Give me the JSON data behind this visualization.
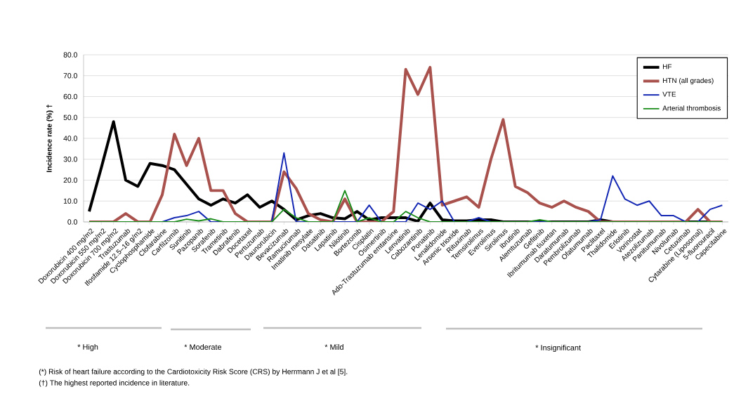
{
  "chart_data": {
    "type": "line",
    "ylabel": "Incidence rate (%) †",
    "categories": [
      "Doxorubicin 400 mg/m2",
      "Doxorubicin 550 mg/m2",
      "Doxorubicin 700 mg/m2",
      "Trastuzumab",
      "Ifosfamide 12.5–16 g/m2",
      "Cyclophosphamide",
      "Clofarabine",
      "Carfilzomib",
      "Sunitinib",
      "Pazopanib",
      "Sorafenib",
      "Trametinib",
      "Dabrafenib",
      "Docetaxel",
      "Pertuzumab",
      "Daunorubicin",
      "Bevacizumab",
      "Ramucirumab",
      "Imatinib mesylate",
      "Dasatinib",
      "Lapatinib",
      "Nilotinib",
      "Bortezomib",
      "Cisplatin",
      "Osimertinib",
      "Ado-Trastuzumab emtansine",
      "Lenvatinib",
      "Cabozantinib",
      "Ponatinib",
      "Lenalidomide",
      "Arsenic trioxide",
      "Rituximab",
      "Temsirolimus",
      "Everolimus",
      "Sirolimus",
      "Ibrutinib",
      "Alemtuzumab",
      "Gefitinib",
      "Ibritumumab tiuxetan",
      "Daratumumab",
      "Pembrolizumab",
      "Ofatumumab",
      "Paclitaxel",
      "Thalidomide",
      "Erlotinib",
      "Vorinostat",
      "Atezolizumab",
      "Panitumumab",
      "Nivolumab",
      "Cetuximab",
      "Cytarabine (Liposomal)",
      "5-fluorouracil",
      "Capecitabine"
    ],
    "series": [
      {
        "name": "HF",
        "color": "#000000",
        "values": [
          5,
          26,
          48,
          20,
          17,
          28,
          27,
          25,
          18,
          11,
          8,
          11,
          9,
          13,
          7,
          10,
          6,
          1,
          3,
          4,
          2,
          1.5,
          5,
          1,
          2,
          2,
          2,
          0.3,
          9,
          1,
          0.5,
          0.5,
          1,
          1,
          0,
          0,
          0,
          0,
          0,
          0,
          0,
          0,
          1,
          0,
          0,
          0,
          0,
          0,
          0,
          0,
          0,
          0,
          0
        ]
      },
      {
        "name": "HTN (all grades)",
        "color": "#a9514c",
        "values": [
          0,
          0,
          0,
          4,
          0,
          0,
          13,
          42,
          27,
          40,
          15,
          15,
          4,
          0,
          0,
          0,
          24,
          16,
          4,
          1,
          0,
          11,
          0,
          0,
          0,
          5,
          73,
          61,
          74,
          8,
          10,
          12,
          7,
          30,
          49,
          17,
          14,
          9,
          7,
          10,
          7,
          5,
          0,
          0,
          0,
          0,
          0,
          0,
          0,
          0,
          6,
          0,
          0
        ]
      },
      {
        "name": "VTE",
        "color": "#1428b4",
        "values": [
          null,
          null,
          null,
          null,
          null,
          0,
          0,
          2,
          3,
          5,
          0,
          0,
          0,
          0,
          0,
          0,
          33,
          0,
          0,
          0,
          0,
          0,
          0,
          8,
          0,
          0,
          0,
          9,
          6,
          10,
          0,
          0,
          2,
          0,
          0,
          0,
          0,
          0,
          0,
          0,
          0,
          0,
          1,
          22,
          11,
          8,
          10,
          3,
          3,
          0,
          0,
          6,
          8
        ]
      },
      {
        "name": "Arterial thrombosis",
        "color": "#1a8c1a",
        "values": [
          0,
          0,
          0,
          0,
          0,
          0,
          0,
          0,
          1.3,
          0.5,
          1.5,
          0,
          0,
          0,
          0,
          0,
          6,
          2,
          0,
          0,
          0,
          15,
          0,
          2,
          0,
          0,
          5,
          2,
          0,
          0,
          0,
          0,
          0,
          0,
          0,
          0,
          0,
          1,
          0,
          0,
          0,
          0,
          0,
          0,
          0,
          0,
          0,
          0,
          0,
          0,
          0,
          0,
          0
        ]
      }
    ],
    "ylim": [
      0,
      80
    ],
    "yticks": [
      {
        "value": 0,
        "label": "0.0"
      },
      {
        "value": 10,
        "label": "10.0"
      },
      {
        "value": 20,
        "label": "20.0"
      },
      {
        "value": 30,
        "label": "30.0"
      },
      {
        "value": 40,
        "label": "40.0"
      },
      {
        "value": 50,
        "label": "50.0"
      },
      {
        "value": 60,
        "label": "60.0"
      },
      {
        "value": 70,
        "label": "70.0"
      },
      {
        "value": 80,
        "label": "80.0"
      }
    ],
    "grid": "y",
    "legend": "top right",
    "annotations": [
      "* High",
      "* Moderate",
      "* Mild",
      "* Insignificant",
      "(*) Risk of heart failure according to the Cardiotoxicity Risk Score (CRS) by Herrmann J et al [5].",
      "(†) The highest reported incidence in literature."
    ]
  }
}
